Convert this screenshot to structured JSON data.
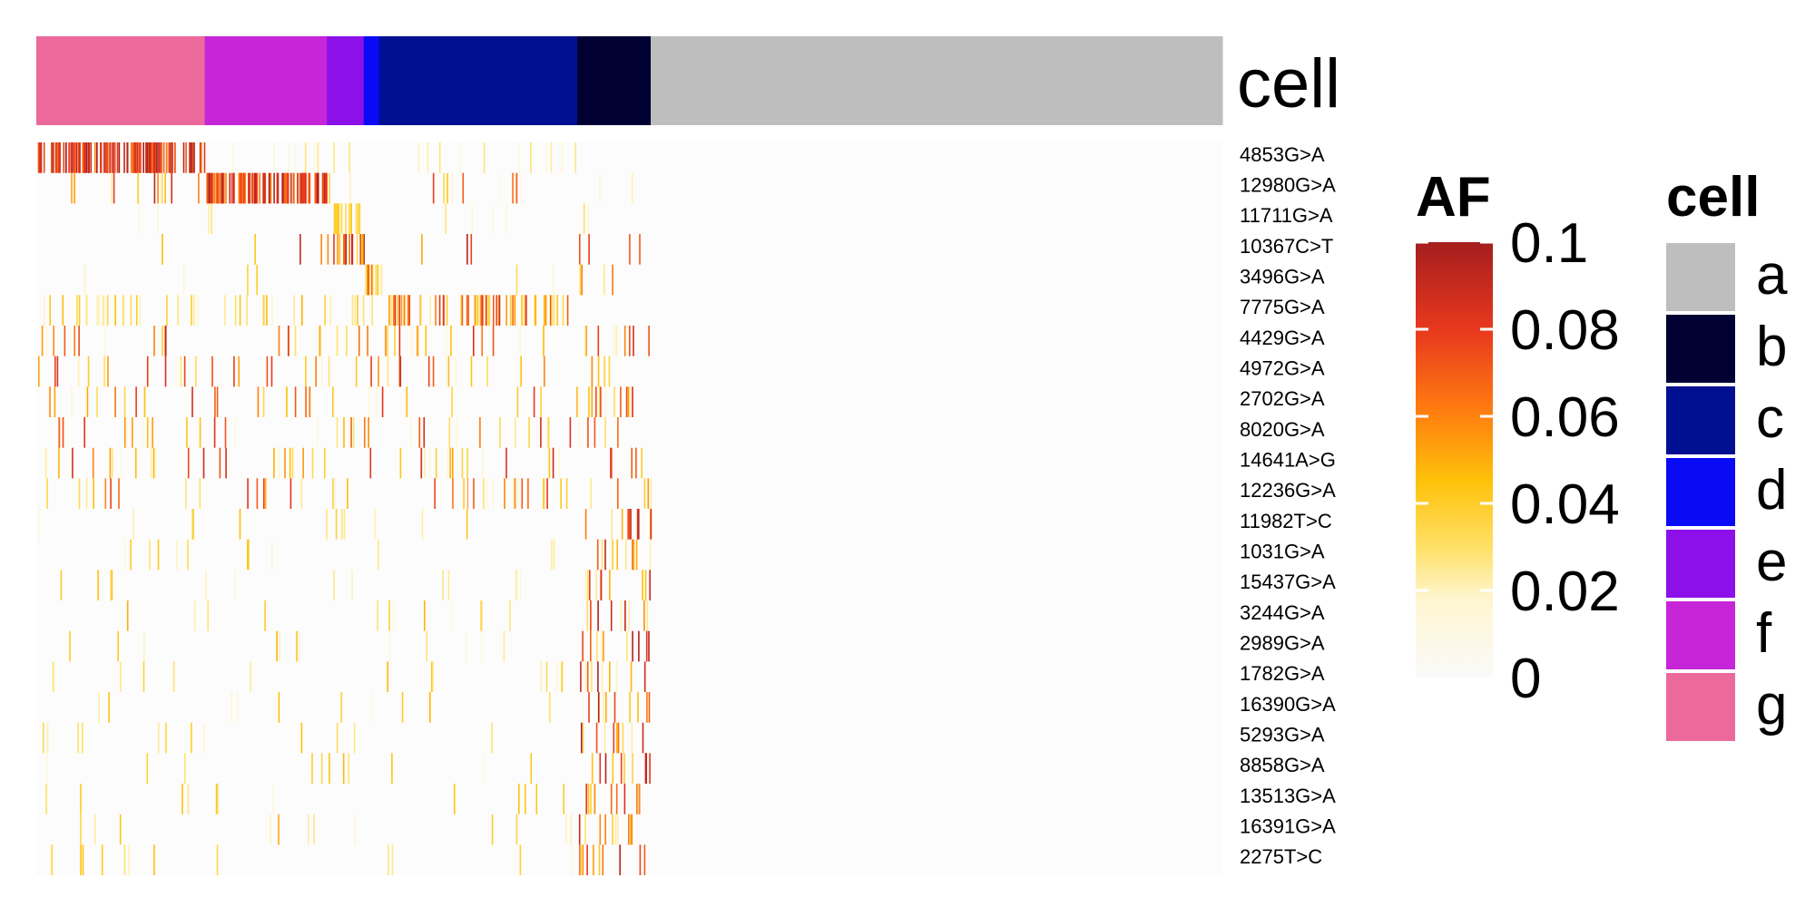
{
  "chart_data": {
    "type": "heatmap",
    "annotation_title": "cell",
    "rows": [
      "4853G>A",
      "12980G>A",
      "11711G>A",
      "10367C>T",
      "3496G>A",
      "7775G>A",
      "4429G>A",
      "4972G>A",
      "2702G>A",
      "8020G>A",
      "14641A>G",
      "12236G>A",
      "11982T>C",
      "1031G>A",
      "15437G>A",
      "3244G>A",
      "2989G>A",
      "1782G>A",
      "16390G>A",
      "5293G>A",
      "8858G>A",
      "13513G>A",
      "16391G>A",
      "2275T>C"
    ],
    "clusters": [
      {
        "name": "g",
        "color": "#EB6A9B",
        "fraction": 0.142
      },
      {
        "name": "f",
        "color": "#C626D8",
        "fraction": 0.103
      },
      {
        "name": "e",
        "color": "#8C10E8",
        "fraction": 0.031
      },
      {
        "name": "d",
        "color": "#0A0AF5",
        "fraction": 0.013
      },
      {
        "name": "c",
        "color": "#001090",
        "fraction": 0.167
      },
      {
        "name": "b",
        "color": "#000033",
        "fraction": 0.062
      },
      {
        "name": "a",
        "color": "#BEBEBE",
        "fraction": 0.482
      }
    ],
    "legend_cell": {
      "title": "cell",
      "entries": [
        {
          "label": "a",
          "color": "#BEBEBE"
        },
        {
          "label": "b",
          "color": "#000033"
        },
        {
          "label": "c",
          "color": "#001090"
        },
        {
          "label": "d",
          "color": "#0A0AF5"
        },
        {
          "label": "e",
          "color": "#8C10E8"
        },
        {
          "label": "f",
          "color": "#C626D8"
        },
        {
          "label": "g",
          "color": "#EB6A9B"
        }
      ]
    },
    "legend_af": {
      "title": "AF",
      "range": [
        0,
        0.1
      ],
      "ticks": [
        {
          "value": 0.1,
          "label": "0.1"
        },
        {
          "value": 0.08,
          "label": "0.08"
        },
        {
          "value": 0.06,
          "label": "0.06"
        },
        {
          "value": 0.04,
          "label": "0.04"
        },
        {
          "value": 0.02,
          "label": "0.02"
        },
        {
          "value": 0,
          "label": "0"
        }
      ],
      "colors": [
        "#FAFAFA",
        "#FFE066",
        "#FFC20A",
        "#FF7A10",
        "#E8381E",
        "#A51E1E"
      ]
    },
    "background_color": "#FCFCFC"
  }
}
